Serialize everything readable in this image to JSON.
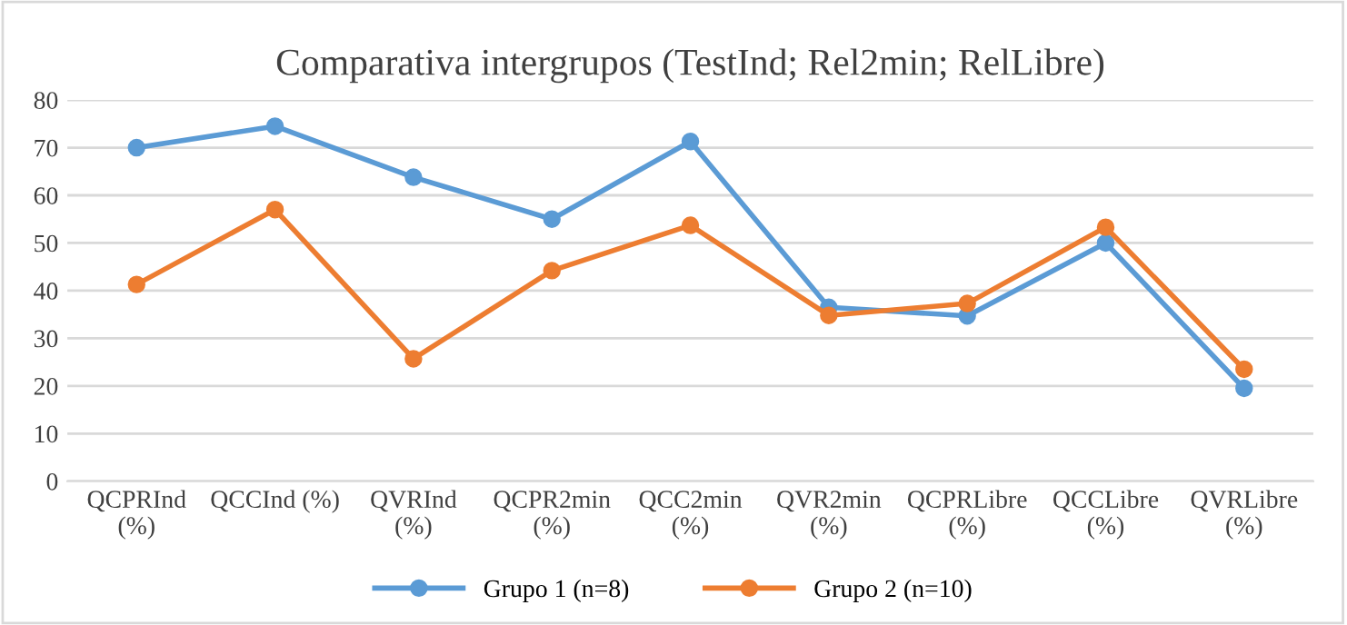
{
  "chart_data": {
    "type": "line",
    "title": "Comparativa intergrupos (TestInd; Rel2min; RelLibre)",
    "categories": [
      "QCPRInd (%)",
      "QCCInd (%)",
      "QVRInd (%)",
      "QCPR2min (%)",
      "QCC2min (%)",
      "QVR2min (%)",
      "QCPRLibre (%)",
      "QCCLibre (%)",
      "QVRLibre (%)"
    ],
    "series": [
      {
        "name": "Grupo 1 (n=8)",
        "color": "#5b9bd5",
        "values": [
          70,
          74.5,
          63.8,
          55,
          71.3,
          36.5,
          34.7,
          50,
          19.5
        ]
      },
      {
        "name": "Grupo 2 (n=10)",
        "color": "#ed7d31",
        "values": [
          41.3,
          57,
          25.7,
          44.2,
          53.7,
          34.8,
          37.3,
          53.3,
          23.5
        ]
      }
    ],
    "ylim": [
      0,
      80
    ],
    "yticks": [
      0,
      10,
      20,
      30,
      40,
      50,
      60,
      70,
      80
    ],
    "grid": "y",
    "legend": "bottom",
    "marker": "circle",
    "line_style": "solid"
  }
}
